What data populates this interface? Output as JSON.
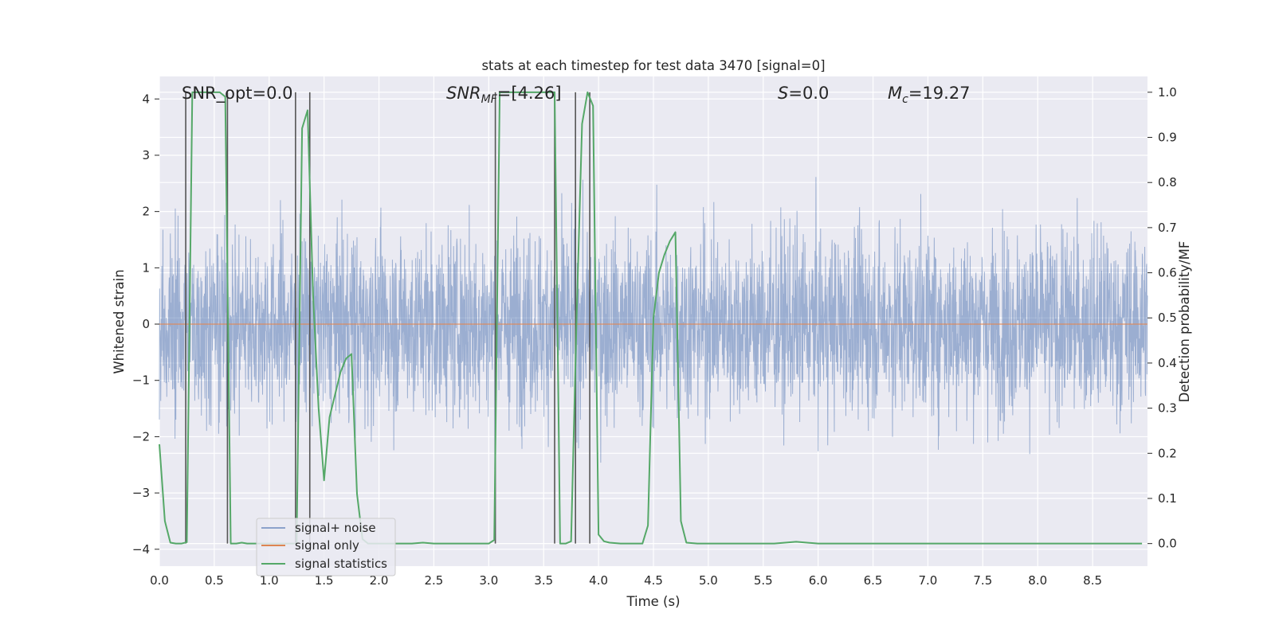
{
  "chart_data": {
    "type": "line",
    "title": "stats at each timestep for test data 3470 [signal=0]",
    "xlabel": "Time (s)",
    "ylabel": "Whitened strain",
    "y2label": "Detection probability/MF",
    "xlim": [
      0.0,
      9.0
    ],
    "ylim": [
      -4.3,
      4.4
    ],
    "y2lim": [
      -0.05,
      1.035
    ],
    "x_ticks": [
      "0.0",
      "0.5",
      "1.0",
      "1.5",
      "2.0",
      "2.5",
      "3.0",
      "3.5",
      "4.0",
      "4.5",
      "5.0",
      "5.5",
      "6.0",
      "6.5",
      "7.0",
      "7.5",
      "8.0",
      "8.5"
    ],
    "y_ticks": [
      "−4",
      "−3",
      "−2",
      "−1",
      "0",
      "1",
      "2",
      "3",
      "4"
    ],
    "y2_ticks": [
      "0.0",
      "0.1",
      "0.2",
      "0.3",
      "0.4",
      "0.5",
      "0.6",
      "0.7",
      "0.8",
      "0.9",
      "1.0"
    ],
    "grid": true,
    "colors": {
      "noise": "#4c72b0",
      "signal": "#dd8452",
      "statistics": "#55a868",
      "vlines": "#555555",
      "background": "#eaeaf2"
    },
    "annotations": {
      "snr_opt": "SNR_opt=0.0",
      "snr_mf_label": "SNR",
      "snr_mf_sub": "MF",
      "snr_mf_value": "=[4.26]",
      "s_label": "S",
      "s_value": "=0.0",
      "mc_label": "M",
      "mc_sub": "c",
      "mc_value": "=19.27"
    },
    "legend": {
      "placement": "lower-left",
      "entries": [
        "signal+ noise",
        "signal only",
        "signal statistics"
      ]
    },
    "series": [
      {
        "name": "signal+ noise",
        "kind": "noise",
        "x_range": [
          0.0,
          9.0
        ],
        "envelope": [
          -1.6,
          1.6
        ],
        "spike_range": [
          -3.9,
          4.0
        ]
      },
      {
        "name": "signal only",
        "kind": "flat",
        "y": 0.0
      },
      {
        "name": "signal statistics",
        "axis": "right",
        "x": [
          0.0,
          0.05,
          0.1,
          0.15,
          0.2,
          0.25,
          0.3,
          0.35,
          0.4,
          0.45,
          0.5,
          0.55,
          0.6,
          0.65,
          0.7,
          0.75,
          0.8,
          0.9,
          1.0,
          1.1,
          1.2,
          1.25,
          1.3,
          1.35,
          1.4,
          1.45,
          1.5,
          1.55,
          1.6,
          1.65,
          1.7,
          1.75,
          1.8,
          1.85,
          1.9,
          2.0,
          2.1,
          2.2,
          2.3,
          2.4,
          2.5,
          2.6,
          2.8,
          3.0,
          3.05,
          3.1,
          3.15,
          3.2,
          3.3,
          3.4,
          3.5,
          3.55,
          3.6,
          3.65,
          3.7,
          3.75,
          3.8,
          3.85,
          3.9,
          3.95,
          4.0,
          4.05,
          4.1,
          4.2,
          4.3,
          4.4,
          4.45,
          4.5,
          4.55,
          4.6,
          4.65,
          4.7,
          4.75,
          4.8,
          4.9,
          5.0,
          5.2,
          5.4,
          5.6,
          5.8,
          6.0,
          6.5,
          7.0,
          7.5,
          8.0,
          8.5,
          8.95
        ],
        "y": [
          0.22,
          0.05,
          0.002,
          0.0,
          0.0,
          0.003,
          1.0,
          1.0,
          1.0,
          1.0,
          1.0,
          1.0,
          0.99,
          0.0,
          0.0,
          0.002,
          0.0,
          0.0,
          0.0,
          0.0,
          0.0,
          0.0,
          0.92,
          0.96,
          0.55,
          0.3,
          0.14,
          0.28,
          0.33,
          0.38,
          0.41,
          0.42,
          0.11,
          0.01,
          0.0,
          0.0,
          0.0,
          0.0,
          0.0,
          0.002,
          0.0,
          0.0,
          0.0,
          0.0,
          0.008,
          1.0,
          1.0,
          1.0,
          1.0,
          1.0,
          1.0,
          1.0,
          1.0,
          0.0,
          0.0,
          0.005,
          0.5,
          0.93,
          1.0,
          0.97,
          0.02,
          0.005,
          0.002,
          0.0,
          0.0,
          0.0,
          0.04,
          0.5,
          0.6,
          0.64,
          0.67,
          0.69,
          0.05,
          0.002,
          0.0,
          0.0,
          0.0,
          0.0,
          0.0,
          0.004,
          0.0,
          0.0,
          0.0,
          0.0,
          0.0,
          0.0,
          0.0
        ]
      }
    ],
    "vlines_x": [
      0.24,
      0.62,
      1.24,
      1.37,
      3.06,
      3.6,
      3.79,
      3.92
    ]
  }
}
